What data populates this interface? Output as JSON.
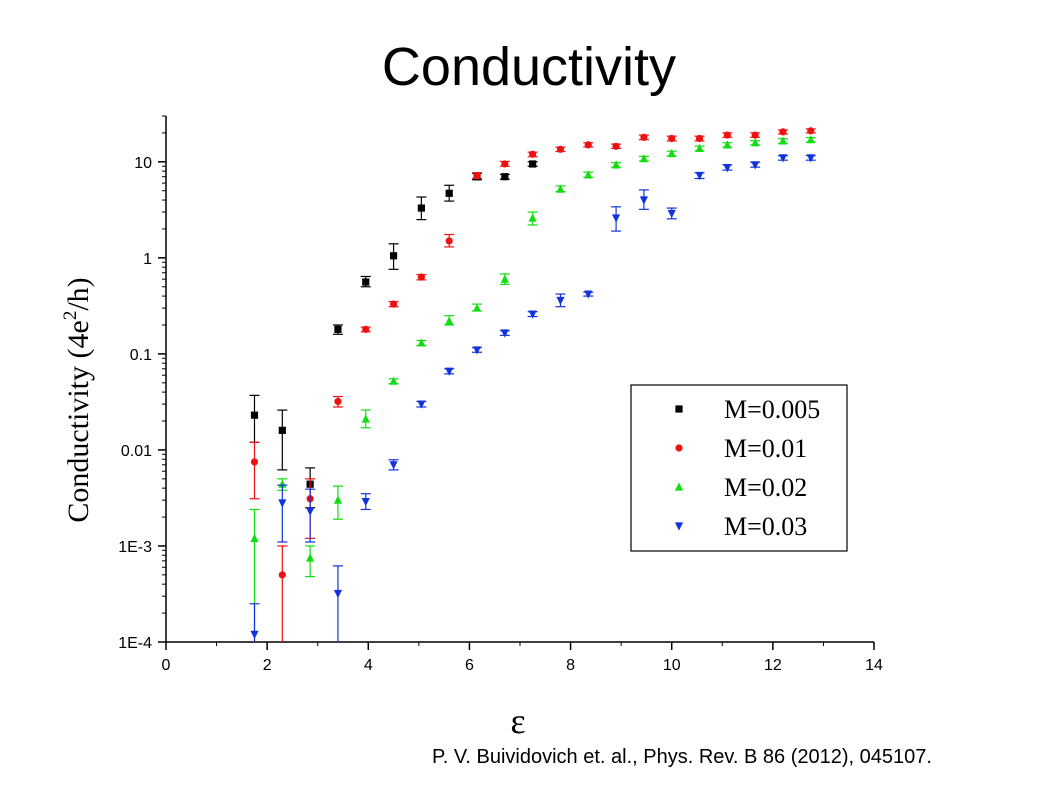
{
  "title": "Conductivity",
  "citation": "P. V. Buividovich et. al., Phys. Rev. B 86 (2012), 045107.",
  "chart_data": {
    "type": "scatter",
    "title": "Conductivity",
    "xlabel": "ε",
    "ylabel": "Conductivity (4e²/h)",
    "ylabel_parts": [
      "Conductivity (4e",
      "2",
      "/h)"
    ],
    "xlim": [
      0,
      14
    ],
    "ylim": [
      0.0001,
      30
    ],
    "yscale": "log",
    "grid": false,
    "legend_position": "lower-right",
    "x_ticks": [
      0,
      2,
      4,
      6,
      8,
      10,
      12,
      14
    ],
    "x_tick_labels": [
      "0",
      "2",
      "4",
      "6",
      "8",
      "10",
      "12",
      "14"
    ],
    "y_ticks": [
      0.0001,
      0.001,
      0.01,
      0.1,
      1,
      10
    ],
    "y_tick_labels": [
      "1E-4",
      "1E-3",
      "0.01",
      "0.1",
      "1",
      "10"
    ],
    "series": [
      {
        "name": "M=0.005",
        "color": "#000000",
        "marker": "square",
        "points": [
          {
            "x": 1.75,
            "y": 0.023,
            "lo": 0.012,
            "hi": 0.037
          },
          {
            "x": 2.3,
            "y": 0.016,
            "lo": 0.0062,
            "hi": 0.026
          },
          {
            "x": 2.85,
            "y": 0.0044,
            "lo": 0.0025,
            "hi": 0.0065
          },
          {
            "x": 3.4,
            "y": 0.18,
            "lo": 0.16,
            "hi": 0.2
          },
          {
            "x": 3.95,
            "y": 0.56,
            "lo": 0.5,
            "hi": 0.64
          },
          {
            "x": 4.5,
            "y": 1.05,
            "lo": 0.76,
            "hi": 1.4
          },
          {
            "x": 5.05,
            "y": 3.3,
            "lo": 2.5,
            "hi": 4.3
          },
          {
            "x": 5.6,
            "y": 4.7,
            "lo": 3.9,
            "hi": 5.7
          },
          {
            "x": 6.15,
            "y": 7.0,
            "lo": 6.5,
            "hi": 7.6
          },
          {
            "x": 6.7,
            "y": 7.0,
            "lo": 6.6,
            "hi": 7.4
          },
          {
            "x": 7.25,
            "y": 9.5,
            "lo": 9.0,
            "hi": 10.0
          }
        ]
      },
      {
        "name": "M=0.01",
        "color": "#ee1111",
        "marker": "circle",
        "points": [
          {
            "x": 1.75,
            "y": 0.0075,
            "lo": 0.0031,
            "hi": 0.012
          },
          {
            "x": 2.3,
            "y": 0.0005,
            "lo": 0.0001,
            "hi": 0.001
          },
          {
            "x": 2.85,
            "y": 0.0031,
            "lo": 0.0012,
            "hi": 0.005
          },
          {
            "x": 3.4,
            "y": 0.032,
            "lo": 0.028,
            "hi": 0.036
          },
          {
            "x": 3.95,
            "y": 0.18,
            "lo": 0.17,
            "hi": 0.19
          },
          {
            "x": 4.5,
            "y": 0.33,
            "lo": 0.31,
            "hi": 0.35
          },
          {
            "x": 5.05,
            "y": 0.63,
            "lo": 0.59,
            "hi": 0.67
          },
          {
            "x": 5.6,
            "y": 1.5,
            "lo": 1.3,
            "hi": 1.75
          },
          {
            "x": 6.15,
            "y": 7.2,
            "lo": 6.7,
            "hi": 7.7
          },
          {
            "x": 6.7,
            "y": 9.5,
            "lo": 9.0,
            "hi": 10.1
          },
          {
            "x": 7.25,
            "y": 12.0,
            "lo": 11.3,
            "hi": 12.6
          },
          {
            "x": 7.8,
            "y": 13.5,
            "lo": 12.8,
            "hi": 14.2
          },
          {
            "x": 8.35,
            "y": 15.0,
            "lo": 14.3,
            "hi": 15.8
          },
          {
            "x": 8.9,
            "y": 14.5,
            "lo": 13.8,
            "hi": 15.3
          },
          {
            "x": 9.45,
            "y": 18.0,
            "lo": 17.0,
            "hi": 19.0
          },
          {
            "x": 10.0,
            "y": 17.5,
            "lo": 16.5,
            "hi": 18.5
          },
          {
            "x": 10.55,
            "y": 17.5,
            "lo": 16.5,
            "hi": 18.5
          },
          {
            "x": 11.1,
            "y": 19.0,
            "lo": 18.0,
            "hi": 20.0
          },
          {
            "x": 11.65,
            "y": 19.0,
            "lo": 18.0,
            "hi": 20.0
          },
          {
            "x": 12.2,
            "y": 20.5,
            "lo": 19.5,
            "hi": 21.5
          },
          {
            "x": 12.75,
            "y": 21.0,
            "lo": 20.0,
            "hi": 22.0
          }
        ]
      },
      {
        "name": "M=0.02",
        "color": "#11dd11",
        "marker": "triangle-up",
        "points": [
          {
            "x": 1.75,
            "y": 0.0012,
            "lo": 0.0001,
            "hi": 0.0024
          },
          {
            "x": 2.3,
            "y": 0.0044,
            "lo": 0.0038,
            "hi": 0.005
          },
          {
            "x": 2.85,
            "y": 0.00075,
            "lo": 0.00048,
            "hi": 0.001
          },
          {
            "x": 3.4,
            "y": 0.003,
            "lo": 0.0019,
            "hi": 0.0042
          },
          {
            "x": 3.95,
            "y": 0.021,
            "lo": 0.017,
            "hi": 0.026
          },
          {
            "x": 4.5,
            "y": 0.052,
            "lo": 0.049,
            "hi": 0.055
          },
          {
            "x": 5.05,
            "y": 0.13,
            "lo": 0.122,
            "hi": 0.138
          },
          {
            "x": 5.6,
            "y": 0.22,
            "lo": 0.2,
            "hi": 0.25
          },
          {
            "x": 6.15,
            "y": 0.3,
            "lo": 0.28,
            "hi": 0.33
          },
          {
            "x": 6.7,
            "y": 0.6,
            "lo": 0.53,
            "hi": 0.68
          },
          {
            "x": 7.25,
            "y": 2.6,
            "lo": 2.2,
            "hi": 3.0
          },
          {
            "x": 7.8,
            "y": 5.2,
            "lo": 4.9,
            "hi": 5.6
          },
          {
            "x": 8.35,
            "y": 7.3,
            "lo": 6.9,
            "hi": 7.8
          },
          {
            "x": 8.9,
            "y": 9.3,
            "lo": 8.8,
            "hi": 9.8
          },
          {
            "x": 9.45,
            "y": 10.8,
            "lo": 10.2,
            "hi": 11.4
          },
          {
            "x": 10.0,
            "y": 12.2,
            "lo": 11.5,
            "hi": 12.9
          },
          {
            "x": 10.55,
            "y": 13.8,
            "lo": 13.0,
            "hi": 14.6
          },
          {
            "x": 11.1,
            "y": 15.0,
            "lo": 14.2,
            "hi": 15.8
          },
          {
            "x": 11.65,
            "y": 15.8,
            "lo": 15.0,
            "hi": 16.6
          },
          {
            "x": 12.2,
            "y": 16.5,
            "lo": 15.6,
            "hi": 17.4
          },
          {
            "x": 12.75,
            "y": 17.0,
            "lo": 16.1,
            "hi": 17.9
          }
        ]
      },
      {
        "name": "M=0.03",
        "color": "#1133dd",
        "marker": "triangle-down",
        "points": [
          {
            "x": 1.75,
            "y": 0.00012,
            "lo": 0.0001,
            "hi": 0.00025
          },
          {
            "x": 2.3,
            "y": 0.0028,
            "lo": 0.0011,
            "hi": 0.0043
          },
          {
            "x": 2.85,
            "y": 0.0023,
            "lo": 0.0011,
            "hi": 0.0039
          },
          {
            "x": 3.4,
            "y": 0.00032,
            "lo": 0.0001,
            "hi": 0.00062
          },
          {
            "x": 3.95,
            "y": 0.0029,
            "lo": 0.0024,
            "hi": 0.0035
          },
          {
            "x": 4.5,
            "y": 0.007,
            "lo": 0.0062,
            "hi": 0.0079
          },
          {
            "x": 5.05,
            "y": 0.03,
            "lo": 0.028,
            "hi": 0.032
          },
          {
            "x": 5.6,
            "y": 0.066,
            "lo": 0.062,
            "hi": 0.07
          },
          {
            "x": 6.15,
            "y": 0.11,
            "lo": 0.104,
            "hi": 0.116
          },
          {
            "x": 6.7,
            "y": 0.165,
            "lo": 0.156,
            "hi": 0.174
          },
          {
            "x": 7.25,
            "y": 0.26,
            "lo": 0.245,
            "hi": 0.275
          },
          {
            "x": 7.8,
            "y": 0.36,
            "lo": 0.31,
            "hi": 0.42
          },
          {
            "x": 8.35,
            "y": 0.42,
            "lo": 0.4,
            "hi": 0.44
          },
          {
            "x": 8.9,
            "y": 2.6,
            "lo": 1.9,
            "hi": 3.4
          },
          {
            "x": 9.45,
            "y": 4.0,
            "lo": 3.2,
            "hi": 5.1
          },
          {
            "x": 10.0,
            "y": 2.9,
            "lo": 2.55,
            "hi": 3.3
          },
          {
            "x": 10.55,
            "y": 7.2,
            "lo": 6.7,
            "hi": 7.7
          },
          {
            "x": 11.1,
            "y": 8.7,
            "lo": 8.2,
            "hi": 9.3
          },
          {
            "x": 11.65,
            "y": 9.3,
            "lo": 8.8,
            "hi": 9.9
          },
          {
            "x": 12.2,
            "y": 11.0,
            "lo": 10.4,
            "hi": 11.6
          },
          {
            "x": 12.75,
            "y": 11.0,
            "lo": 10.4,
            "hi": 11.6
          }
        ]
      }
    ]
  }
}
